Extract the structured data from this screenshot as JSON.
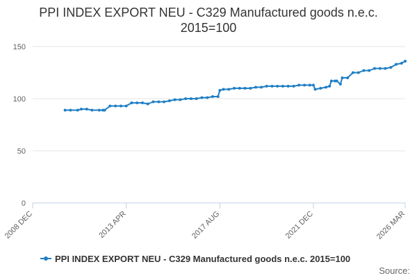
{
  "chart_data": {
    "type": "line",
    "title": "PPI INDEX EXPORT NEU - C329 Manufactured goods n.e.c.",
    "subtitle": "2015=100",
    "xlabel": "",
    "ylabel": "",
    "xlim": [
      "2008-12",
      "2026-03"
    ],
    "ylim": [
      0,
      150
    ],
    "y_ticks": [
      0,
      50,
      100,
      150
    ],
    "x_ticks": [
      "2008 DEC",
      "2013 APR",
      "2017 AUG",
      "2021 DEC",
      "2026 MAR"
    ],
    "grid": true,
    "legend_position": "bottom",
    "series": [
      {
        "name": "PPI INDEX EXPORT NEU - C329 Manufactured goods n.e.c. 2015=100",
        "color": "#1f7fc4",
        "x": [
          "2010-06",
          "2010-09",
          "2011-01",
          "2011-03",
          "2011-06",
          "2011-09",
          "2012-01",
          "2012-03",
          "2012-04",
          "2012-07",
          "2012-10",
          "2013-01",
          "2013-04",
          "2013-07",
          "2013-10",
          "2014-01",
          "2014-04",
          "2014-07",
          "2014-10",
          "2015-01",
          "2015-04",
          "2015-07",
          "2015-10",
          "2016-01",
          "2016-04",
          "2016-07",
          "2016-10",
          "2017-01",
          "2017-04",
          "2017-07",
          "2017-08",
          "2017-10",
          "2018-01",
          "2018-04",
          "2018-07",
          "2018-10",
          "2019-01",
          "2019-04",
          "2019-07",
          "2019-10",
          "2020-01",
          "2020-04",
          "2020-07",
          "2020-10",
          "2021-01",
          "2021-04",
          "2021-07",
          "2021-10",
          "2021-12",
          "2022-01",
          "2022-04",
          "2022-07",
          "2022-09",
          "2022-10",
          "2022-12",
          "2023-01",
          "2023-03",
          "2023-04",
          "2023-07",
          "2023-10",
          "2024-01",
          "2024-04",
          "2024-07",
          "2024-10",
          "2025-01",
          "2025-04",
          "2025-07",
          "2025-10",
          "2026-01",
          "2026-03"
        ],
        "values": [
          89,
          89,
          89,
          90,
          90,
          89,
          89,
          89,
          89,
          93,
          93,
          93,
          93,
          96,
          96,
          96,
          95,
          97,
          97,
          97,
          98,
          99,
          99,
          100,
          100,
          100,
          101,
          101,
          102,
          102,
          108,
          109,
          109,
          110,
          110,
          110,
          110,
          111,
          111,
          112,
          112,
          112,
          112,
          112,
          112,
          113,
          113,
          113,
          113,
          109,
          110,
          111,
          112,
          117,
          117,
          117,
          114,
          120,
          120,
          125,
          125,
          127,
          127,
          129,
          129,
          129,
          130,
          133,
          134,
          136
        ]
      }
    ],
    "legend": "PPI INDEX EXPORT NEU - C329 Manufactured goods n.e.c. 2015=100",
    "credit": "Source:"
  }
}
